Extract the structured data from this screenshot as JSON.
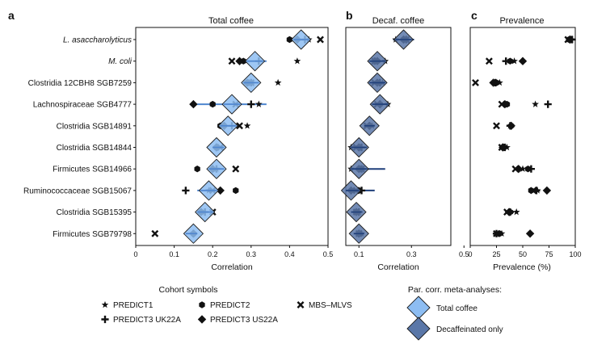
{
  "panels": {
    "a": {
      "letter": "a",
      "title": "Total coffee",
      "xlabel": "Correlation"
    },
    "b": {
      "letter": "b",
      "title": "Decaf. coffee",
      "xlabel": "Correlation"
    },
    "c": {
      "letter": "c",
      "title": "Prevalence",
      "xlabel": "Prevalence (%)"
    }
  },
  "legend": {
    "cohort_title": "Cohort symbols",
    "cohorts": [
      {
        "key": "PREDICT1",
        "label": "PREDICT1",
        "symbol": "star"
      },
      {
        "key": "PREDICT2",
        "label": "PREDICT2",
        "symbol": "hexagon"
      },
      {
        "key": "MBS",
        "label": "MBS–MLVS",
        "symbol": "x"
      },
      {
        "key": "UK22A",
        "label": "PREDICT3 UK22A",
        "symbol": "plus"
      },
      {
        "key": "US22A",
        "label": "PREDICT3 US22A",
        "symbol": "diamond"
      }
    ],
    "meta_title": "Par. corr. meta-analyses:",
    "meta": [
      {
        "label": "Total coffee",
        "color": "#8dbdf2"
      },
      {
        "label": "Decaffeinated only",
        "color": "#5a77a8"
      }
    ]
  },
  "colors": {
    "total": "#8dbdf2",
    "total_dark": "#4f86cf",
    "decaf": "#5a77a8",
    "decaf_dark": "#1f3f7a",
    "marker": "#111111"
  },
  "chart_data": [
    {
      "type": "scatter",
      "panel": "a",
      "title": "Total coffee",
      "xlabel": "Correlation",
      "xlim": [
        0,
        0.5
      ],
      "xticks": [
        0,
        0.1,
        0.2,
        0.3,
        0.4,
        0.5
      ],
      "xticklabels": [
        "0",
        "0.1",
        "0.2",
        "0.3",
        "0.4",
        "0.5"
      ],
      "categories": [
        "L. asaccharolyticus",
        "M. coli",
        "Clostridia 12CBH8 SGB7259",
        "Lachnospiraceae SGB4777",
        "Clostridia SGB14891",
        "Clostridia SGB14844",
        "Firmicutes SGB14966",
        "Ruminococcaceae SGB15067",
        "Clostridia SGB15395",
        "Firmicutes SGB79798"
      ],
      "italic_categories": [
        "L. asaccharolyticus",
        "M. coli"
      ],
      "meta_estimate": [
        0.43,
        0.31,
        0.3,
        0.25,
        0.24,
        0.21,
        0.21,
        0.19,
        0.18,
        0.15
      ],
      "meta_ci": [
        [
          0.41,
          0.45
        ],
        [
          0.28,
          0.34
        ],
        [
          0.28,
          0.32
        ],
        [
          0.16,
          0.34
        ],
        [
          0.22,
          0.27
        ],
        [
          0.2,
          0.23
        ],
        [
          0.19,
          0.23
        ],
        [
          0.16,
          0.22
        ],
        [
          0.16,
          0.2
        ],
        [
          0.13,
          0.16
        ]
      ],
      "cohorts": {
        "PREDICT1": [
          0.45,
          0.42,
          0.37,
          0.32,
          0.29,
          0.21,
          0.21,
          0.19,
          0.17,
          0.15
        ],
        "PREDICT2": [
          0.4,
          0.28,
          0.29,
          0.2,
          0.22,
          0.21,
          0.16,
          0.26,
          0.17,
          0.15
        ],
        "MBS": [
          0.48,
          0.25,
          0.3,
          0.26,
          0.27,
          0.22,
          0.26,
          0.2,
          0.2,
          0.05
        ],
        "UK22A": [
          0.44,
          0.32,
          0.3,
          0.3,
          0.25,
          0.21,
          0.21,
          0.13,
          0.18,
          0.15
        ],
        "US22A": [
          0.42,
          0.27,
          0.29,
          0.15,
          0.23,
          0.21,
          0.2,
          0.22,
          0.17,
          0.15
        ]
      }
    },
    {
      "type": "scatter",
      "panel": "b",
      "title": "Decaf. coffee",
      "xlabel": "Correlation",
      "xlim": [
        0.05,
        0.45
      ],
      "xticks": [
        0.1,
        0.3,
        0.5
      ],
      "xticklabels": [
        "0.1",
        "0.3",
        "0.5"
      ],
      "categories": [
        "L. asaccharolyticus",
        "M. coli",
        "Clostridia 12CBH8 SGB7259",
        "Lachnospiraceae SGB4777",
        "Clostridia SGB14891",
        "Clostridia SGB14844",
        "Firmicutes SGB14966",
        "Ruminococcaceae SGB15067",
        "Clostridia SGB15395",
        "Firmicutes SGB79798"
      ],
      "meta_estimate": [
        0.27,
        0.17,
        0.17,
        0.18,
        0.14,
        0.1,
        0.1,
        0.07,
        0.09,
        0.1
      ],
      "meta_ci": [
        [
          0.23,
          0.31
        ],
        [
          0.14,
          0.2
        ],
        [
          0.14,
          0.2
        ],
        [
          0.15,
          0.21
        ],
        [
          0.12,
          0.16
        ],
        [
          0.07,
          0.13
        ],
        [
          0.07,
          0.2
        ],
        [
          0.05,
          0.16
        ],
        [
          0.07,
          0.11
        ],
        [
          0.08,
          0.12
        ]
      ],
      "cohorts": {
        "PREDICT1": [
          0.24,
          0.2,
          0.19,
          0.21,
          0.15,
          0.07,
          0.07,
          0.1,
          0.1,
          0.11
        ],
        "PREDICT2": [
          0.27,
          0.17,
          0.17,
          0.18,
          0.14,
          0.1,
          0.1,
          0.1,
          0.09,
          0.1
        ],
        "MBS": [
          0.28,
          0.16,
          0.16,
          0.17,
          0.13,
          0.09,
          0.11,
          0.09,
          0.09,
          0.1
        ],
        "UK22A": [
          0.28,
          0.16,
          0.18,
          0.18,
          0.14,
          0.11,
          0.11,
          0.11,
          0.1,
          0.1
        ],
        "US22A": [
          0.27,
          0.17,
          0.17,
          0.18,
          0.14,
          0.1,
          0.1,
          0.07,
          0.09,
          0.1
        ]
      }
    },
    {
      "type": "scatter",
      "panel": "c",
      "title": "Prevalence",
      "xlabel": "Prevalence (%)",
      "xlim": [
        0,
        100
      ],
      "xticks": [
        0,
        25,
        50,
        75,
        100
      ],
      "xticklabels": [
        "0",
        "25",
        "50",
        "75",
        "100"
      ],
      "categories": [
        "L. asaccharolyticus",
        "M. coli",
        "Clostridia 12CBH8 SGB7259",
        "Lachnospiraceae SGB4777",
        "Clostridia SGB14891",
        "Clostridia SGB14844",
        "Firmicutes SGB14966",
        "Ruminococcaceae SGB15067",
        "Clostridia SGB15395",
        "Firmicutes SGB79798"
      ],
      "cohorts": {
        "PREDICT1": [
          96,
          42,
          28,
          62,
          38,
          35,
          50,
          64,
          44,
          30
        ],
        "PREDICT2": [
          94,
          38,
          25,
          35,
          39,
          32,
          55,
          58,
          38,
          28
        ],
        "MBS": [
          93,
          18,
          5,
          30,
          25,
          30,
          43,
          60,
          35,
          25
        ],
        "UK22A": [
          97,
          34,
          24,
          74,
          38,
          33,
          58,
          63,
          38,
          25
        ],
        "US22A": [
          95,
          50,
          22,
          33,
          39,
          31,
          46,
          73,
          37,
          57
        ]
      }
    }
  ]
}
